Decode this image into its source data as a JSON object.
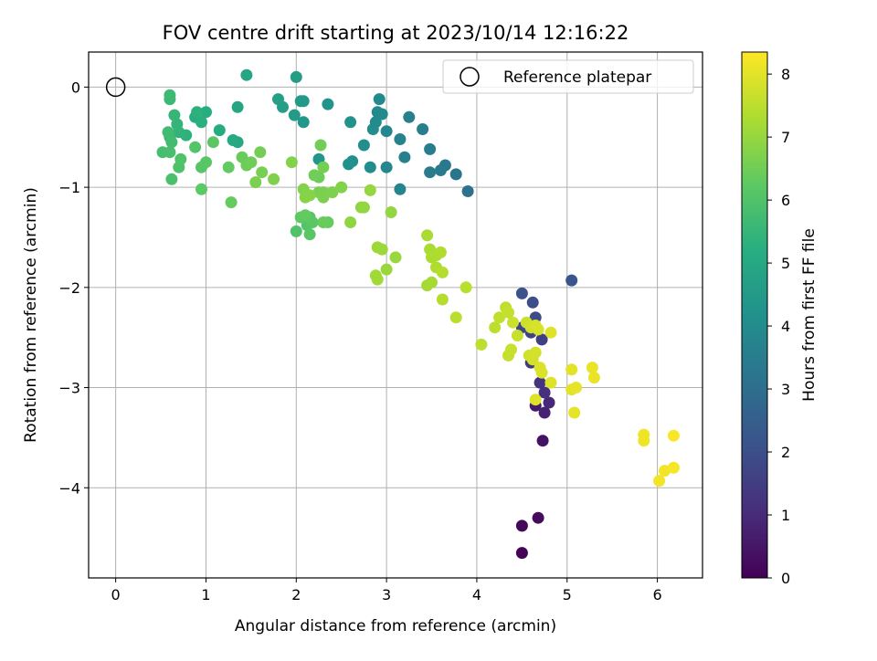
{
  "chart_data": {
    "type": "scatter",
    "title": "FOV centre drift starting at 2023/10/14 12:16:22",
    "xlabel": "Angular distance from reference (arcmin)",
    "ylabel": "Rotation from reference (arcmin)",
    "xlim": [
      -0.3,
      6.5
    ],
    "ylim": [
      -4.9,
      0.35
    ],
    "xticks": [
      0,
      1,
      2,
      3,
      4,
      5,
      6
    ],
    "yticks": [
      0,
      -1,
      -2,
      -3,
      -4
    ],
    "grid": true,
    "legend": {
      "placement": "top-right",
      "entries": [
        "Reference platepar"
      ]
    },
    "reference_point": {
      "x": 0,
      "y": 0
    },
    "colorbar": {
      "label": "Hours from first FF file",
      "range": [
        0,
        8.35
      ],
      "ticks": [
        0,
        1,
        2,
        3,
        4,
        5,
        6,
        7,
        8
      ],
      "colormap": "viridis"
    },
    "points": [
      [
        4.5,
        -4.65,
        0.05
      ],
      [
        4.5,
        -4.38,
        0.15
      ],
      [
        4.68,
        -4.3,
        0.25
      ],
      [
        4.73,
        -3.53,
        0.4
      ],
      [
        4.65,
        -3.18,
        0.6
      ],
      [
        4.75,
        -3.25,
        0.8
      ],
      [
        4.8,
        -3.15,
        0.95
      ],
      [
        4.75,
        -3.05,
        1.1
      ],
      [
        4.7,
        -2.95,
        1.2
      ],
      [
        4.6,
        -2.75,
        1.4
      ],
      [
        4.72,
        -2.52,
        1.55
      ],
      [
        4.6,
        -2.45,
        1.7
      ],
      [
        4.5,
        -2.4,
        1.8
      ],
      [
        4.65,
        -2.3,
        1.9
      ],
      [
        4.62,
        -2.15,
        2.0
      ],
      [
        4.5,
        -2.06,
        2.1
      ],
      [
        5.05,
        -1.93,
        2.2
      ],
      [
        3.9,
        -1.04,
        3.1
      ],
      [
        3.77,
        -0.87,
        3.2
      ],
      [
        3.65,
        -0.78,
        3.3
      ],
      [
        3.6,
        -0.83,
        3.4
      ],
      [
        3.48,
        -0.85,
        3.45
      ],
      [
        3.48,
        -0.62,
        3.5
      ],
      [
        3.4,
        -0.42,
        3.55
      ],
      [
        3.25,
        -0.3,
        3.6
      ],
      [
        3.2,
        -0.7,
        3.65
      ],
      [
        3.15,
        -0.52,
        3.7
      ],
      [
        3.15,
        -1.02,
        3.75
      ],
      [
        3.0,
        -0.8,
        3.8
      ],
      [
        3.0,
        -0.44,
        3.85
      ],
      [
        2.95,
        -0.27,
        3.9
      ],
      [
        2.92,
        -0.12,
        3.92
      ],
      [
        2.9,
        -0.25,
        3.95
      ],
      [
        2.88,
        -0.35,
        3.98
      ],
      [
        2.85,
        -0.42,
        4.0
      ],
      [
        2.82,
        -0.8,
        4.05
      ],
      [
        2.75,
        -0.58,
        4.1
      ],
      [
        2.62,
        -0.74,
        4.15
      ],
      [
        2.58,
        -0.77,
        4.2
      ],
      [
        2.6,
        -0.35,
        4.25
      ],
      [
        2.35,
        -0.17,
        4.3
      ],
      [
        2.25,
        -0.72,
        4.35
      ],
      [
        2.08,
        -0.35,
        4.4
      ],
      [
        2.08,
        -0.14,
        4.45
      ],
      [
        2.05,
        -0.14,
        4.5
      ],
      [
        1.98,
        -0.28,
        4.55
      ],
      [
        2.0,
        0.1,
        4.6
      ],
      [
        1.85,
        -0.2,
        4.65
      ],
      [
        1.8,
        -0.12,
        4.7
      ],
      [
        1.45,
        0.12,
        4.85
      ],
      [
        1.35,
        -0.2,
        4.9
      ],
      [
        1.35,
        -0.55,
        5.0
      ],
      [
        1.3,
        -0.53,
        5.05
      ],
      [
        1.15,
        -0.43,
        5.1
      ],
      [
        1.0,
        -0.25,
        5.15
      ],
      [
        0.88,
        -0.3,
        5.2
      ],
      [
        0.95,
        -0.35,
        5.25
      ],
      [
        0.9,
        -0.25,
        5.3
      ],
      [
        0.78,
        -0.48,
        5.35
      ],
      [
        0.7,
        -0.45,
        5.4
      ],
      [
        0.68,
        -0.37,
        5.45
      ],
      [
        0.65,
        -0.28,
        5.5
      ],
      [
        0.6,
        -0.5,
        5.55
      ],
      [
        0.6,
        -0.12,
        5.6
      ],
      [
        0.6,
        -0.08,
        5.65
      ],
      [
        0.58,
        -0.45,
        5.7
      ],
      [
        0.62,
        -0.55,
        5.75
      ],
      [
        0.52,
        -0.65,
        5.8
      ],
      [
        0.6,
        -0.65,
        5.85
      ],
      [
        0.62,
        -0.92,
        5.9
      ],
      [
        0.7,
        -0.8,
        5.95
      ],
      [
        0.72,
        -0.72,
        6.0
      ],
      [
        0.88,
        -0.6,
        6.05
      ],
      [
        0.95,
        -0.8,
        6.1
      ],
      [
        1.0,
        -0.75,
        6.15
      ],
      [
        1.08,
        -0.55,
        6.2
      ],
      [
        0.95,
        -1.02,
        6.25
      ],
      [
        1.25,
        -0.8,
        6.3
      ],
      [
        1.28,
        -1.15,
        6.35
      ],
      [
        1.4,
        -0.7,
        6.4
      ],
      [
        1.45,
        -0.78,
        6.45
      ],
      [
        1.5,
        -0.75,
        6.5
      ],
      [
        1.6,
        -0.65,
        6.55
      ],
      [
        1.62,
        -0.85,
        6.6
      ],
      [
        1.55,
        -0.95,
        6.65
      ],
      [
        1.75,
        -0.92,
        6.7
      ],
      [
        1.95,
        -0.75,
        6.75
      ],
      [
        2.0,
        -1.44,
        6.0
      ],
      [
        2.12,
        -1.38,
        6.05
      ],
      [
        2.15,
        -1.3,
        6.1
      ],
      [
        2.15,
        -1.47,
        6.15
      ],
      [
        2.18,
        -1.35,
        6.2
      ],
      [
        2.05,
        -1.3,
        6.25
      ],
      [
        2.1,
        -1.28,
        6.3
      ],
      [
        2.35,
        -1.35,
        6.35
      ],
      [
        2.3,
        -1.35,
        6.4
      ],
      [
        2.25,
        -0.9,
        6.45
      ],
      [
        2.2,
        -0.88,
        6.5
      ],
      [
        2.27,
        -0.58,
        6.5
      ],
      [
        2.3,
        -0.8,
        6.55
      ],
      [
        2.25,
        -1.05,
        6.6
      ],
      [
        2.3,
        -1.05,
        6.6
      ],
      [
        2.3,
        -1.1,
        6.65
      ],
      [
        2.4,
        -1.05,
        6.7
      ],
      [
        2.5,
        -1.0,
        6.75
      ],
      [
        2.08,
        -1.02,
        6.75
      ],
      [
        2.1,
        -1.1,
        6.8
      ],
      [
        2.15,
        -1.08,
        6.8
      ],
      [
        2.6,
        -1.35,
        6.9
      ],
      [
        2.72,
        -1.2,
        6.9
      ],
      [
        2.75,
        -1.2,
        6.95
      ],
      [
        3.05,
        -1.25,
        6.95
      ],
      [
        2.82,
        -1.03,
        7.0
      ],
      [
        3.1,
        -1.7,
        7.05
      ],
      [
        3.0,
        -1.82,
        7.05
      ],
      [
        2.95,
        -1.62,
        7.1
      ],
      [
        2.9,
        -1.6,
        7.1
      ],
      [
        2.88,
        -1.88,
        7.15
      ],
      [
        2.9,
        -1.92,
        7.15
      ],
      [
        3.45,
        -1.98,
        7.2
      ],
      [
        3.5,
        -1.95,
        7.2
      ],
      [
        3.45,
        -1.48,
        7.25
      ],
      [
        3.48,
        -1.62,
        7.25
      ],
      [
        3.5,
        -1.7,
        7.3
      ],
      [
        3.55,
        -1.68,
        7.3
      ],
      [
        3.6,
        -1.65,
        7.35
      ],
      [
        3.55,
        -1.8,
        7.35
      ],
      [
        3.62,
        -1.85,
        7.4
      ],
      [
        3.62,
        -2.12,
        7.4
      ],
      [
        3.77,
        -2.3,
        7.45
      ],
      [
        3.88,
        -2.0,
        7.45
      ],
      [
        4.05,
        -2.57,
        7.5
      ],
      [
        4.2,
        -2.4,
        7.5
      ],
      [
        4.25,
        -2.3,
        7.55
      ],
      [
        4.32,
        -2.2,
        7.55
      ],
      [
        4.35,
        -2.25,
        7.6
      ],
      [
        4.35,
        -2.68,
        7.6
      ],
      [
        4.38,
        -2.62,
        7.65
      ],
      [
        4.45,
        -2.48,
        7.65
      ],
      [
        4.4,
        -2.35,
        7.7
      ],
      [
        4.55,
        -2.35,
        7.7
      ],
      [
        4.6,
        -2.4,
        7.75
      ],
      [
        4.58,
        -2.68,
        7.75
      ],
      [
        4.62,
        -2.72,
        7.8
      ],
      [
        4.65,
        -2.65,
        7.8
      ],
      [
        4.65,
        -2.38,
        7.85
      ],
      [
        4.68,
        -2.42,
        7.85
      ],
      [
        4.7,
        -2.8,
        7.9
      ],
      [
        4.72,
        -2.85,
        7.9
      ],
      [
        4.82,
        -2.45,
        7.95
      ],
      [
        4.82,
        -2.95,
        7.95
      ],
      [
        4.65,
        -3.12,
        7.95
      ],
      [
        5.05,
        -2.82,
        8.0
      ],
      [
        5.05,
        -3.02,
        8.0
      ],
      [
        5.1,
        -3.0,
        8.05
      ],
      [
        5.08,
        -3.25,
        8.05
      ],
      [
        5.28,
        -2.8,
        8.1
      ],
      [
        5.3,
        -2.9,
        8.1
      ],
      [
        5.85,
        -3.47,
        8.15
      ],
      [
        5.85,
        -3.53,
        8.15
      ],
      [
        6.02,
        -3.93,
        8.2
      ],
      [
        6.08,
        -3.83,
        8.2
      ],
      [
        6.18,
        -3.8,
        8.25
      ],
      [
        6.18,
        -3.48,
        8.3
      ]
    ]
  }
}
